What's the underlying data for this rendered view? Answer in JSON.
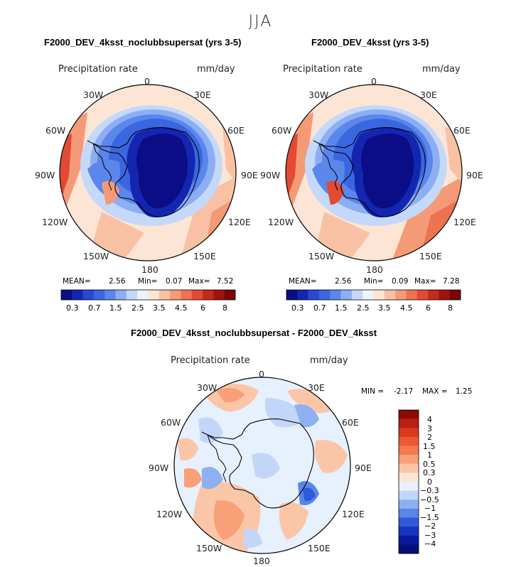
{
  "season": "JJA",
  "panels": {
    "left": {
      "title": "F2000_DEV_4ksst_noclubbsupersat (yrs 3-5)",
      "variable": "Precipitation rate",
      "units": "mm/day",
      "stats": {
        "mean_label": "MEAN=",
        "mean": "2.56",
        "min_label": "Min=",
        "min": "0.07",
        "max_label": "Max=",
        "max": "7.52"
      }
    },
    "right": {
      "title": "F2000_DEV_4ksst (yrs 3-5)",
      "variable": "Precipitation rate",
      "units": "mm/day",
      "stats": {
        "mean_label": "MEAN=",
        "mean": "2.56",
        "min_label": "Min=",
        "min": "0.09",
        "max_label": "Max=",
        "max": "7.28"
      }
    },
    "diff": {
      "title": "F2000_DEV_4ksst_noclubbsupersat - F2000_DEV_4ksst",
      "variable": "Precipitation rate",
      "units": "mm/day",
      "stats": {
        "min_label": "MIN =",
        "min": "-2.17",
        "max_label": "MAX =",
        "max": "1.25"
      }
    }
  },
  "longitude_labels": [
    "0",
    "30E",
    "60E",
    "90E",
    "120E",
    "150E",
    "180",
    "150W",
    "120W",
    "90W",
    "60W",
    "30W"
  ],
  "colorbar_main": {
    "labels": [
      "0.3",
      "0.7",
      "1.5",
      "2.5",
      "3.5",
      "4.5",
      "6",
      "8"
    ],
    "colors": [
      "#0a0d85",
      "#1426b0",
      "#2a48d0",
      "#3a66e0",
      "#5b86ec",
      "#8eaef3",
      "#c4d9f9",
      "#eef4fd",
      "#fde5d5",
      "#f9c1a3",
      "#f59a76",
      "#ef7251",
      "#e24a33",
      "#c22a1a",
      "#9e140c",
      "#7a0505"
    ]
  },
  "colorbar_diff": {
    "labels": [
      "4",
      "3",
      "2",
      "1.5",
      "1",
      "0.5",
      "0.3",
      "0",
      "−0.3",
      "−0.5",
      "−1",
      "−1.5",
      "−2",
      "−3",
      "−4"
    ],
    "colors": [
      "#8b0a05",
      "#b8200f",
      "#d9391d",
      "#ec5a32",
      "#f47a4f",
      "#f8a078",
      "#fbc6a8",
      "#fde6d6",
      "#e7f0fd",
      "#c2d6f8",
      "#8eb0f0",
      "#5a86e6",
      "#2f5ad9",
      "#1535c2",
      "#0a1a9a",
      "#06107a"
    ]
  },
  "colors": {
    "wet_red": "#e24a33",
    "dry_blue": "#0a0d85",
    "coast": "#000000"
  }
}
